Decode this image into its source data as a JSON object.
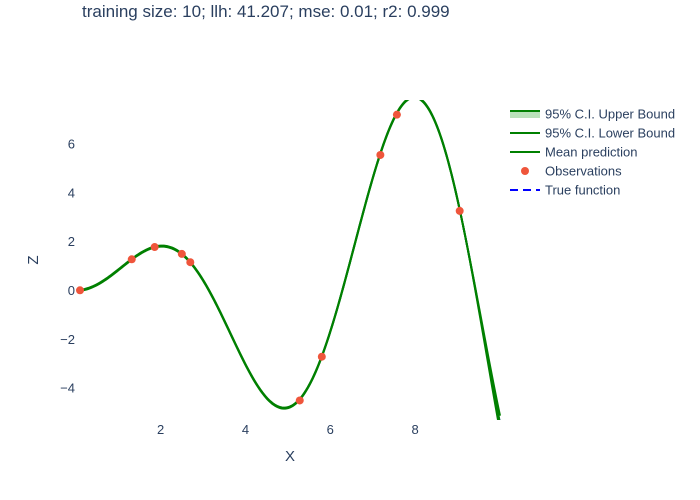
{
  "chart_data": {
    "type": "line",
    "title": "training size: 10; llh: 41.207; mse: 0.01; r2: 0.999",
    "xlabel": "X",
    "ylabel": "Z",
    "xlim": [
      0.1,
      10.0
    ],
    "ylim": [
      -5.3,
      7.8
    ],
    "x_ticks": [
      2,
      4,
      6,
      8
    ],
    "x_tick_labels": [
      "2",
      "4",
      "6",
      "8"
    ],
    "y_ticks": [
      -4,
      -2,
      0,
      2,
      4,
      6
    ],
    "y_tick_labels": [
      "−4",
      "−2",
      "0",
      "2",
      "4",
      "6"
    ],
    "grid": false,
    "legend_position": "top-right",
    "legend": [
      {
        "name": "95% C.I. Upper Bound",
        "style": "band"
      },
      {
        "name": "95% C.I. Lower Bound",
        "style": "line"
      },
      {
        "name": "Mean prediction",
        "style": "line"
      },
      {
        "name": "Observations",
        "style": "marker"
      },
      {
        "name": "True function",
        "style": "dash"
      }
    ],
    "colors": {
      "band_fill": "#a8dba8",
      "ci_line": "#008000",
      "mean": "#008000",
      "observations": "#ef553b",
      "true_function": "#0000ff",
      "text": "#2a3f5f"
    },
    "function": "x * sin(x)",
    "series": [
      {
        "name": "Observations",
        "x": [
          0.1,
          1.32,
          1.86,
          2.5,
          2.7,
          5.28,
          5.8,
          7.18,
          7.57,
          9.05
        ],
        "y": [
          0.01,
          1.28,
          1.78,
          1.5,
          1.16,
          -4.5,
          -2.71,
          5.55,
          7.2,
          3.26
        ]
      },
      {
        "name": "Mean prediction",
        "x": [
          0.1,
          0.5,
          1.0,
          1.5,
          2.0,
          2.5,
          3.0,
          3.5,
          4.0,
          4.5,
          5.0,
          5.5,
          6.0,
          6.5,
          7.0,
          7.5,
          8.0,
          8.5,
          9.0,
          9.5,
          10.0
        ],
        "y": [
          0.01,
          0.24,
          0.84,
          1.5,
          1.82,
          1.5,
          0.42,
          -1.23,
          -3.03,
          -4.4,
          -4.79,
          -3.89,
          -1.68,
          1.4,
          4.6,
          7.03,
          7.91,
          6.83,
          3.71,
          -0.72,
          -5.0
        ]
      }
    ]
  }
}
